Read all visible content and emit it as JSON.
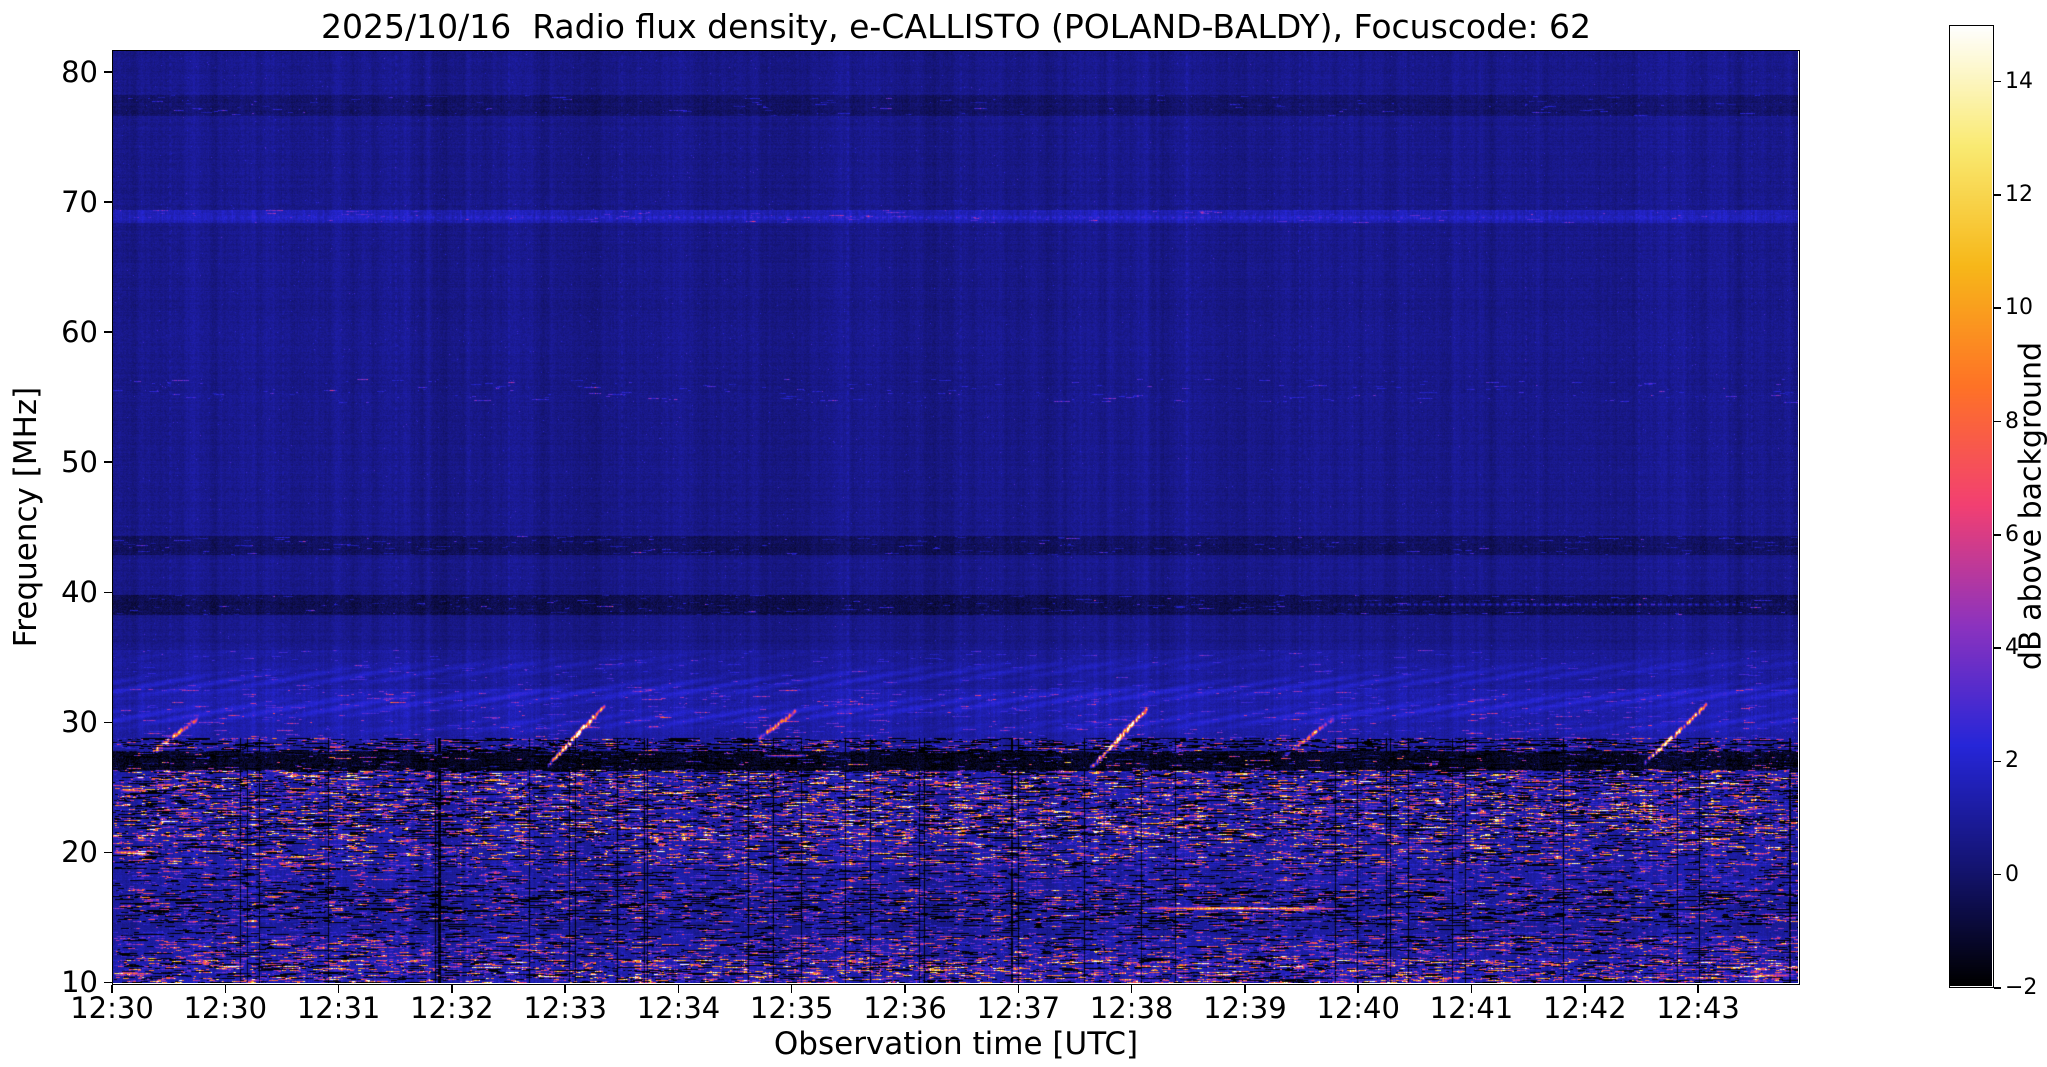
{
  "chart_data": {
    "type": "heatmap",
    "title": "2025/10/16  Radio flux density, e-CALLISTO (POLAND-BALDY), Focuscode: 62",
    "xlabel": "Observation time [UTC]",
    "ylabel": "Frequency [MHz]",
    "colorbar_label": "dB above background",
    "x_ticks": [
      "12:30",
      "12:30",
      "12:31",
      "12:32",
      "12:33",
      "12:34",
      "12:35",
      "12:36",
      "12:37",
      "12:38",
      "12:39",
      "12:40",
      "12:41",
      "12:42",
      "12:43"
    ],
    "x_tick_interval_minutes": 1,
    "y_ticks": [
      80,
      70,
      60,
      50,
      40,
      30,
      20,
      10
    ],
    "colorbar_tick_labels": [
      "14",
      "12",
      "10",
      "8",
      "6",
      "4",
      "2",
      "0",
      "−2"
    ],
    "colorbar_tick_values": [
      14,
      12,
      10,
      8,
      6,
      4,
      2,
      0,
      -2
    ],
    "freq_range": [
      9.8,
      81.7
    ],
    "time_span_minutes": 14.9,
    "value_range": [
      -2,
      15
    ],
    "grid": false,
    "legend": "colorbar-right",
    "render": {
      "seed": 1337,
      "colormap_stops": [
        [
          0,
          0,
          0
        ],
        [
          0.08,
          0.08,
          0.45
        ],
        [
          0.15,
          0.15,
          0.85
        ],
        [
          0.55,
          0.2,
          0.75
        ],
        [
          0.95,
          0.25,
          0.45
        ],
        [
          1.0,
          0.45,
          0.15
        ],
        [
          0.97,
          0.72,
          0.1
        ],
        [
          0.98,
          0.92,
          0.45
        ],
        [
          1,
          1,
          1
        ]
      ],
      "bands": [
        {
          "f": [
            9.8,
            11.6
          ],
          "base": 0.7,
          "density": 0.55,
          "vmax": 9.5,
          "dark": 0.7
        },
        {
          "f": [
            11.6,
            13.4
          ],
          "base": 0.5,
          "density": 0.4,
          "vmax": 7,
          "dark": 0.5
        },
        {
          "f": [
            13.4,
            14.6
          ],
          "base": 0.3,
          "density": 0.2,
          "vmax": 4.5,
          "dark": 0.4
        },
        {
          "f": [
            14.6,
            17.0
          ],
          "base": 0.35,
          "density": 0.3,
          "vmax": 6.5,
          "dark": 0.8
        },
        {
          "f": [
            17.0,
            19.0
          ],
          "base": 0.45,
          "density": 0.28,
          "vmax": 5,
          "dark": 0.4
        },
        {
          "f": [
            19.0,
            21.2
          ],
          "base": 0.5,
          "density": 0.4,
          "vmax": 9.5,
          "dark": 0.5
        },
        {
          "f": [
            21.2,
            26.2
          ],
          "base": 0.55,
          "density": 0.5,
          "vmax": 10,
          "dark": 0.85
        },
        {
          "f": [
            26.2,
            27.7
          ],
          "sub": 2.0,
          "density": 0.1,
          "vmax": 8,
          "dark": 0.3
        },
        {
          "f": [
            27.7,
            28.7
          ],
          "base": 0.3,
          "density": 0.3,
          "vmax": 6,
          "dark": 1.0
        },
        {
          "f": [
            28.7,
            32.5
          ],
          "base": 0.5,
          "density": 0.06,
          "vmax": 3.5
        },
        {
          "f": [
            32.5,
            35.5
          ],
          "base": 0.25,
          "density": 0.03,
          "vmax": 2.5
        },
        {
          "f": [
            38.3,
            39.7
          ],
          "sub": 1.1,
          "density": 0.05,
          "vmax": 3.5
        },
        {
          "f": [
            42.9,
            44.3
          ],
          "sub": 0.8,
          "density": 0.05,
          "vmax": 3
        },
        {
          "f": [
            54.6,
            56.4
          ],
          "density": 0.04,
          "vmax": 3
        },
        {
          "f": [
            68.5,
            69.4
          ],
          "base": 0.8,
          "density": 0.04,
          "vmax": 2.5
        },
        {
          "f": [
            76.8,
            78.3
          ],
          "sub": 0.6,
          "density": 0.03,
          "vmax": 2.5
        }
      ],
      "herringbone": {
        "f": [
          28.8,
          35.8
        ],
        "amp": 1.05
      },
      "bursts": [
        {
          "t": 0.35,
          "f0": 27.6,
          "f1": 30.2,
          "dt": 0.4,
          "peak": 6.5
        },
        {
          "t": 3.85,
          "f0": 26.6,
          "f1": 31.2,
          "dt": 0.5,
          "peak": 14
        },
        {
          "t": 5.7,
          "f0": 28.6,
          "f1": 30.8,
          "dt": 0.35,
          "peak": 5
        },
        {
          "t": 8.65,
          "f0": 26.4,
          "f1": 31.0,
          "dt": 0.5,
          "peak": 13
        },
        {
          "t": 10.35,
          "f0": 27.3,
          "f1": 30.2,
          "dt": 0.45,
          "peak": 4.5
        },
        {
          "t": 13.55,
          "f0": 26.8,
          "f1": 31.3,
          "dt": 0.55,
          "peak": 13
        }
      ],
      "streaks": [
        {
          "t0": 9.1,
          "t1": 10.9,
          "f": 15.6,
          "peak": 12
        },
        {
          "t0": 0.0,
          "t1": 0.3,
          "f": 19.9,
          "peak": 11
        },
        {
          "t0": 0.05,
          "t1": 0.32,
          "f": 24.7,
          "peak": 8
        },
        {
          "t0": 5.75,
          "t1": 6.15,
          "f": 27.4,
          "peak": 9
        },
        {
          "t0": 10.7,
          "t1": 14.9,
          "f": 39.0,
          "peak": 3.2,
          "dotted": true
        },
        {
          "t0": 0.0,
          "t1": 14.9,
          "f": 68.9,
          "peak": 1.2,
          "dotted": true
        },
        {
          "t0": 0.0,
          "t1": 0.35,
          "f": 10.6,
          "peak": 9
        },
        {
          "t0": 14.3,
          "t1": 14.9,
          "f": 10.4,
          "peak": 8
        }
      ]
    }
  }
}
